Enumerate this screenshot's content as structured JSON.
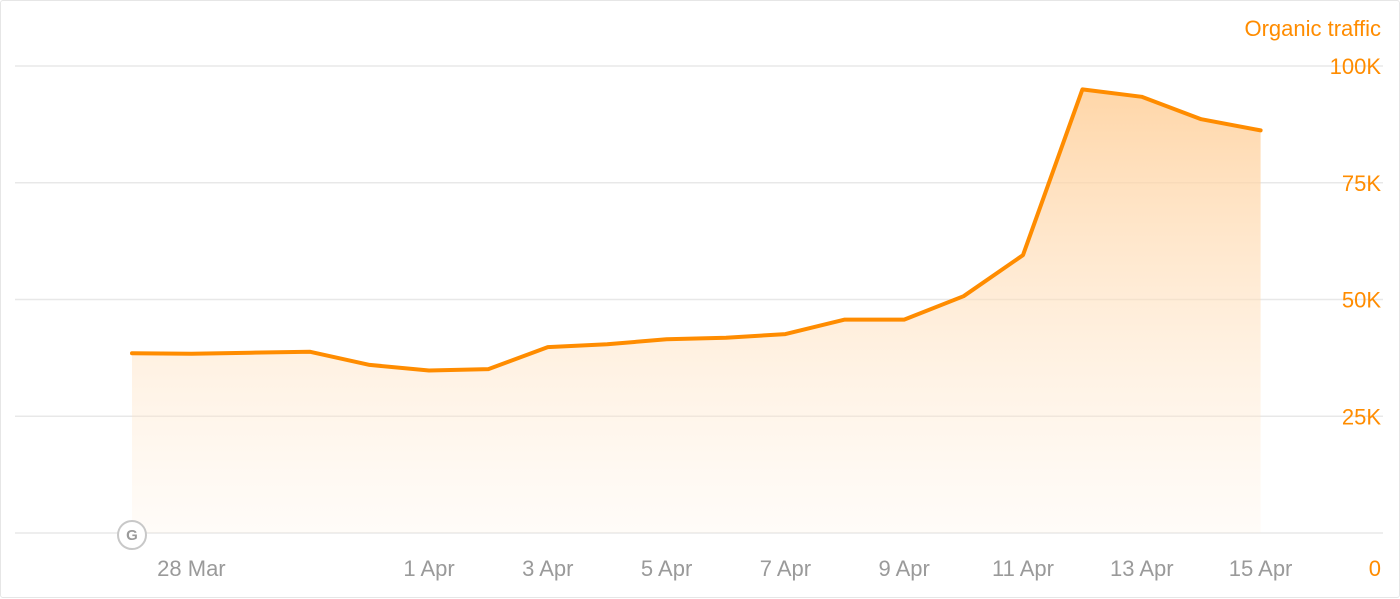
{
  "chart_data": {
    "type": "area",
    "series": [
      {
        "name": "Organic traffic",
        "color": "#ff8c00",
        "values": [
          38500,
          38400,
          38600,
          38800,
          36000,
          34800,
          35100,
          39800,
          40400,
          41500,
          41800,
          42600,
          45700,
          45700,
          50700,
          59500,
          95000,
          93400,
          88600,
          86200
        ]
      }
    ],
    "x": [
      "2025-03-27",
      "2025-03-28",
      "2025-03-29",
      "2025-03-30",
      "2025-03-31",
      "2025-04-01",
      "2025-04-02",
      "2025-04-03",
      "2025-04-04",
      "2025-04-05",
      "2025-04-06",
      "2025-04-07",
      "2025-04-08",
      "2025-04-09",
      "2025-04-10",
      "2025-04-11",
      "2025-04-12",
      "2025-04-13",
      "2025-04-14",
      "2025-04-15"
    ],
    "x_tick_labels": [
      {
        "x": "2025-03-28",
        "label": "28 Mar"
      },
      {
        "x": "2025-04-01",
        "label": "1 Apr"
      },
      {
        "x": "2025-04-03",
        "label": "3 Apr"
      },
      {
        "x": "2025-04-05",
        "label": "5 Apr"
      },
      {
        "x": "2025-04-07",
        "label": "7 Apr"
      },
      {
        "x": "2025-04-09",
        "label": "9 Apr"
      },
      {
        "x": "2025-04-11",
        "label": "11 Apr"
      },
      {
        "x": "2025-04-13",
        "label": "13 Apr"
      },
      {
        "x": "2025-04-15",
        "label": "15 Apr"
      }
    ],
    "y_ticks": [
      {
        "value": 0,
        "label": "0"
      },
      {
        "value": 25000,
        "label": "25K"
      },
      {
        "value": 50000,
        "label": "50K"
      },
      {
        "value": 75000,
        "label": "75K"
      },
      {
        "value": 100000,
        "label": "100K"
      }
    ],
    "ylim": [
      0,
      100000
    ],
    "ylabel": "Organic traffic",
    "grid": true,
    "y_axis_side": "right",
    "annotation": {
      "x": "2025-03-27",
      "label": "G",
      "icon": "google-update-marker-icon"
    }
  }
}
